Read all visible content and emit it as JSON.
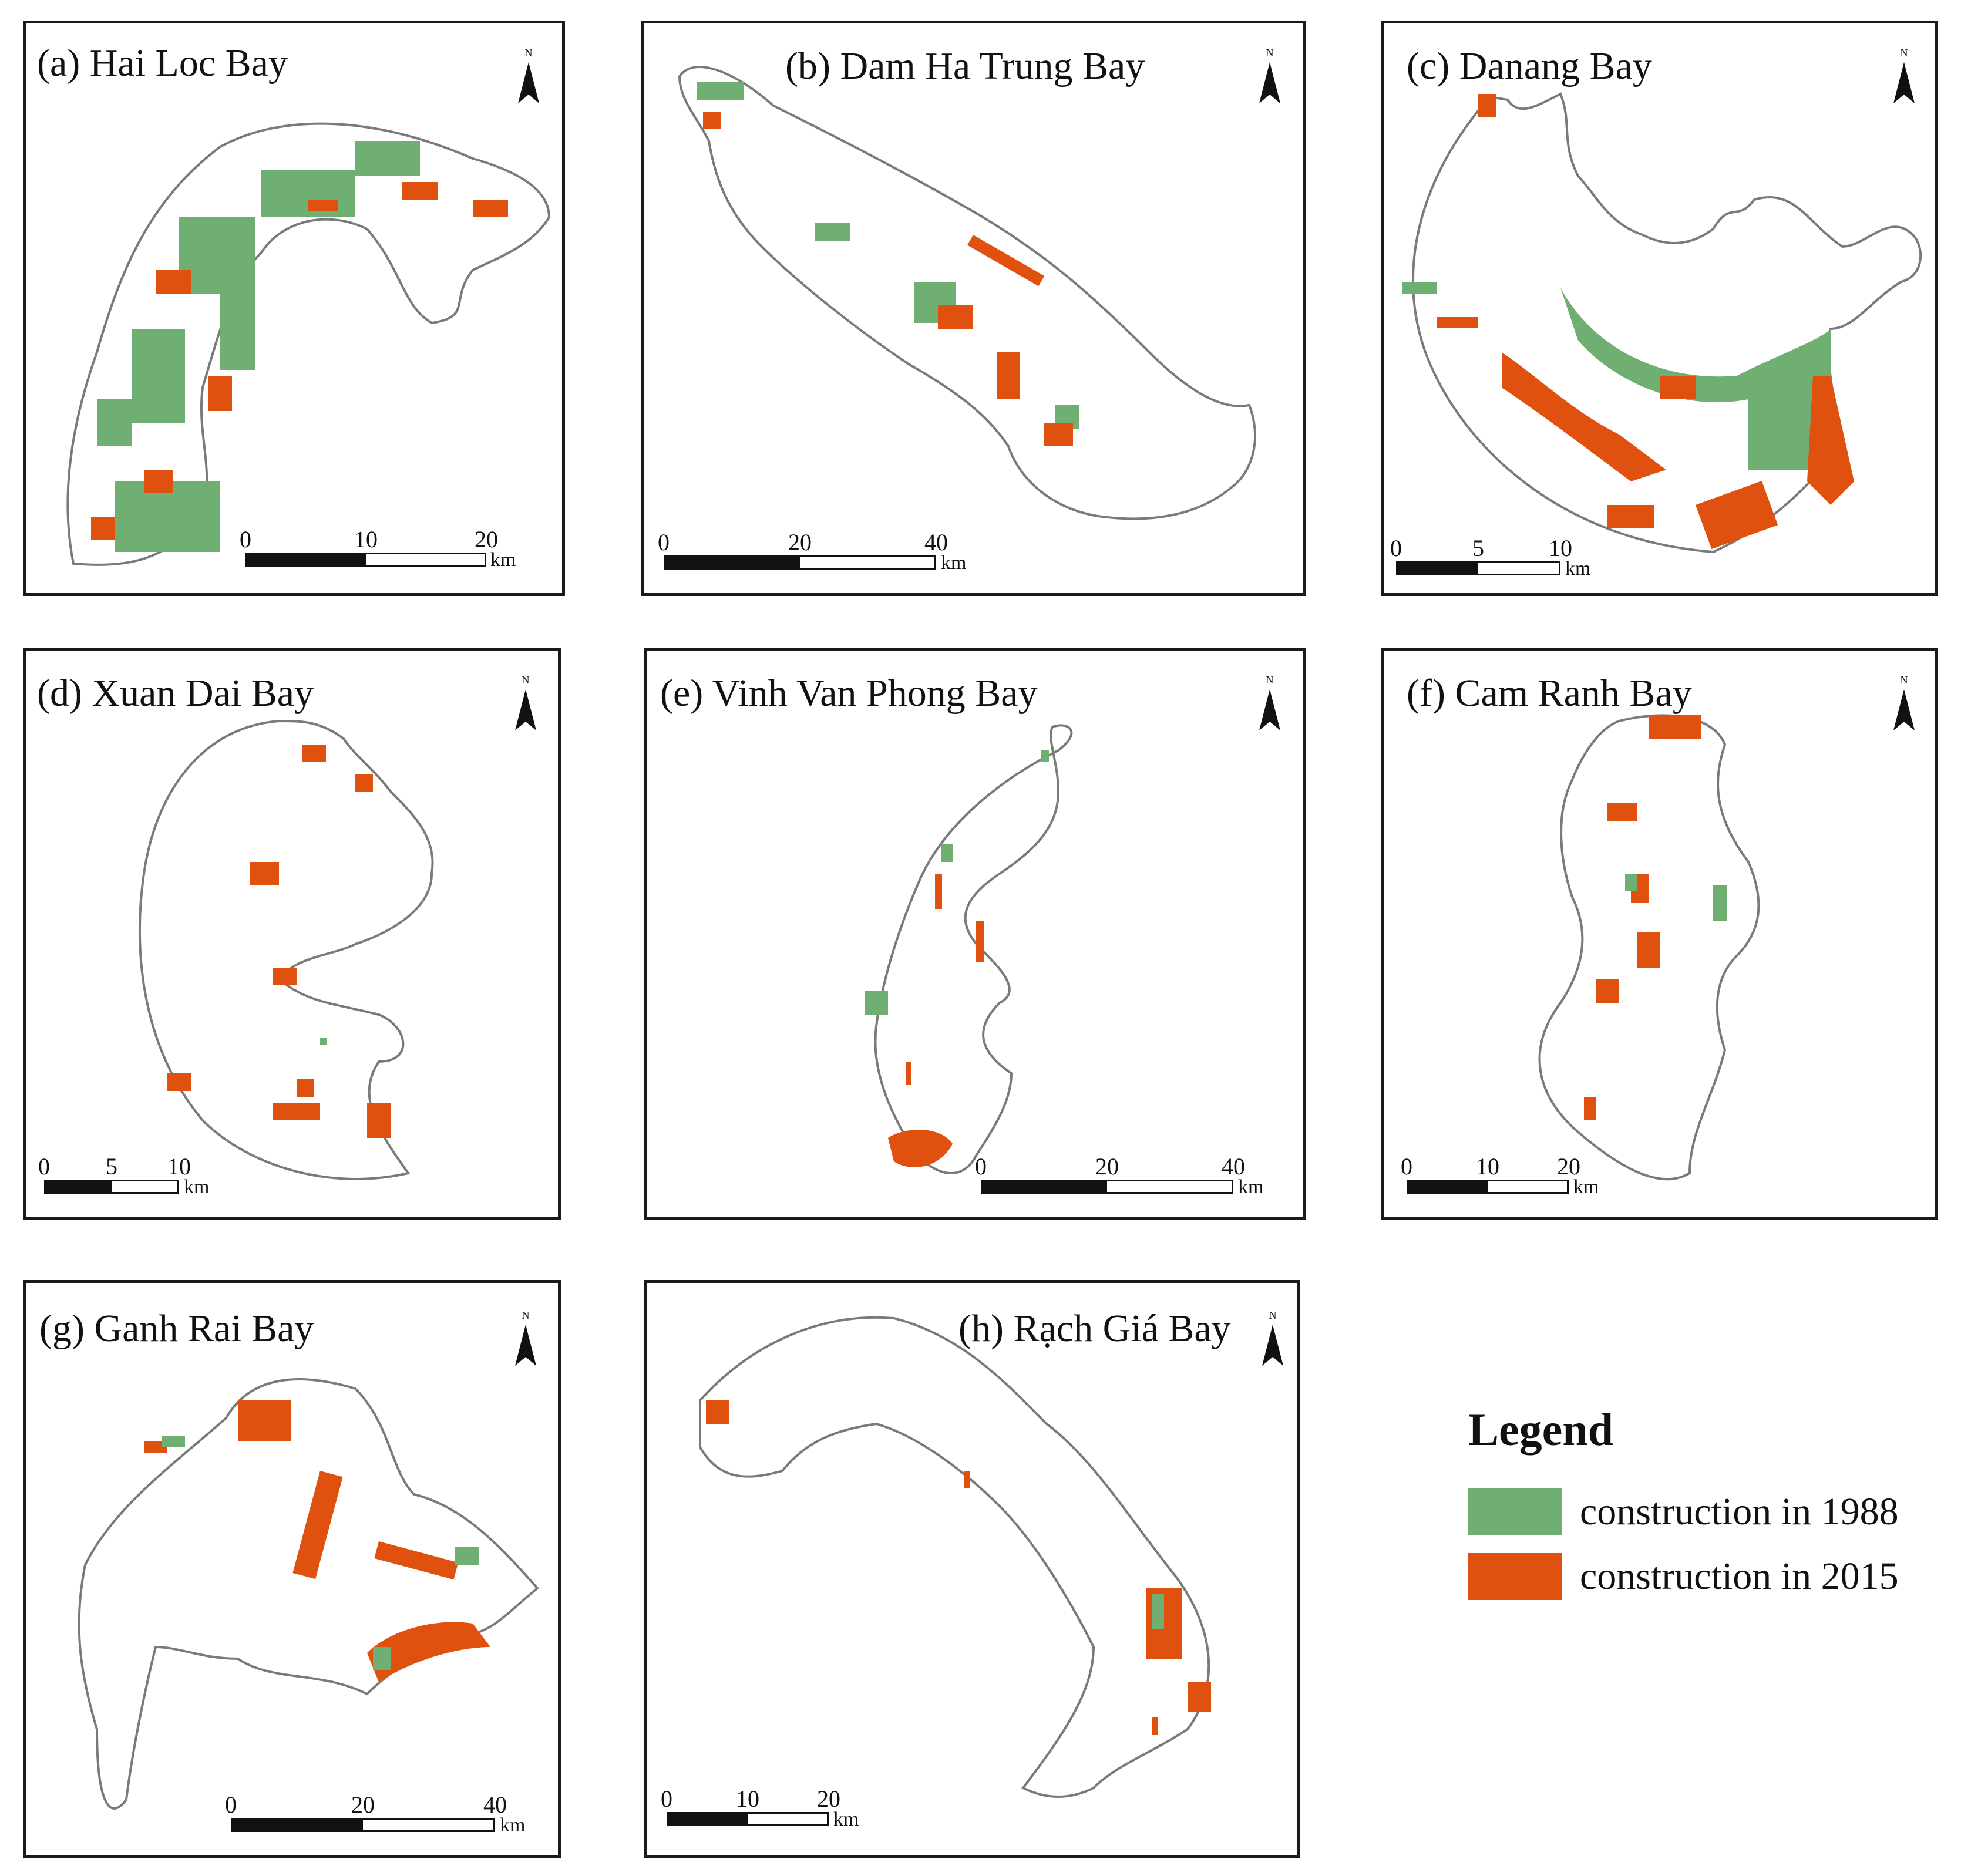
{
  "colors": {
    "construction_1988": "#6fb072",
    "construction_2015": "#e0500f",
    "outline": "#7a7a7a",
    "frame": "#1a1a1a"
  },
  "north_label": "N",
  "panels": [
    {
      "title": "(a) Hai Loc Bay",
      "scale_ticks": [
        "0",
        "10",
        "20"
      ],
      "scale_unit": "km"
    },
    {
      "title": "(b) Dam Ha Trung Bay",
      "scale_ticks": [
        "0",
        "20",
        "40"
      ],
      "scale_unit": "km"
    },
    {
      "title": "(c) Danang Bay",
      "scale_ticks": [
        "0",
        "5",
        "10"
      ],
      "scale_unit": "km"
    },
    {
      "title": "(d) Xuan Dai Bay",
      "scale_ticks": [
        "0",
        "5",
        "10"
      ],
      "scale_unit": "km"
    },
    {
      "title": "(e) Vinh Van Phong Bay",
      "scale_ticks": [
        "0",
        "20",
        "40"
      ],
      "scale_unit": "km"
    },
    {
      "title": "(f) Cam Ranh Bay",
      "scale_ticks": [
        "0",
        "10",
        "20"
      ],
      "scale_unit": "km"
    },
    {
      "title": "(g) Ganh Rai Bay",
      "scale_ticks": [
        "0",
        "20",
        "40"
      ],
      "scale_unit": "km"
    },
    {
      "title": "(h) Rạch Giá Bay",
      "scale_ticks": [
        "0",
        "10",
        "20"
      ],
      "scale_unit": "km"
    }
  ],
  "legend": {
    "title": "Legend",
    "items": [
      {
        "label": "construction in 1988",
        "color_key": "construction_1988"
      },
      {
        "label": "construction in 2015",
        "color_key": "construction_2015"
      }
    ]
  }
}
